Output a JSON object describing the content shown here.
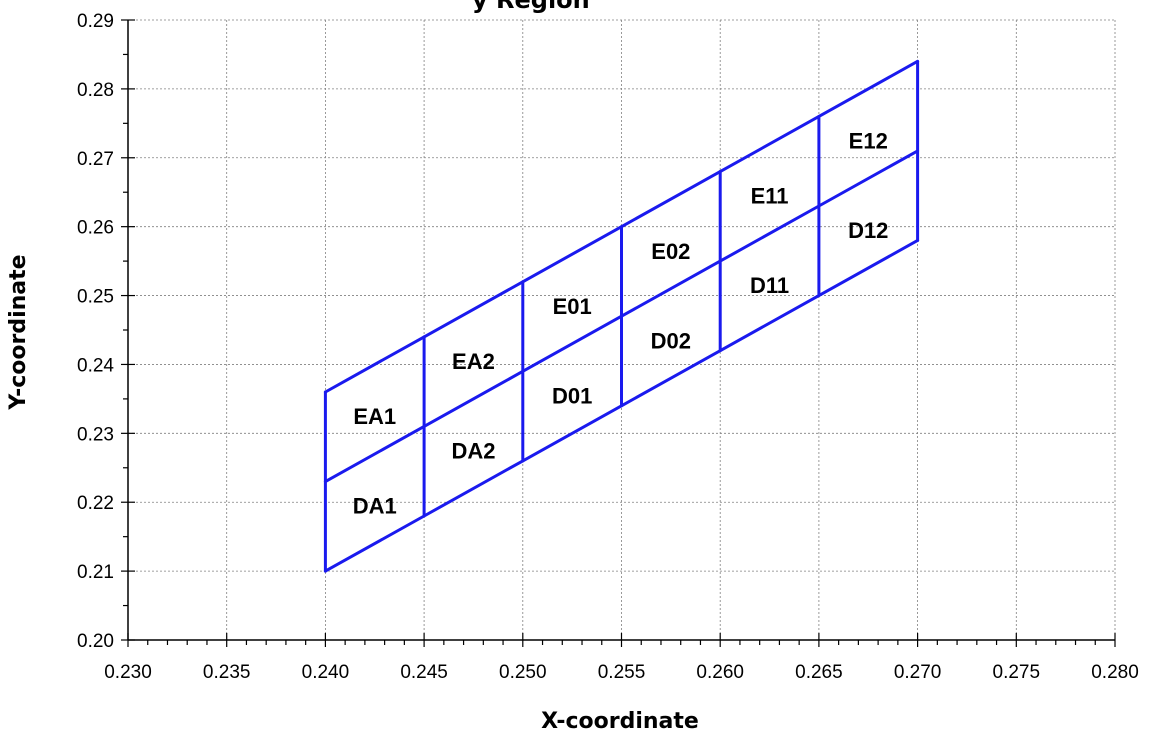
{
  "chart_data": {
    "type": "line",
    "title_visible_fragment": "y Region",
    "xlabel": "X-coordinate",
    "ylabel": "Y-coordinate",
    "xlim": [
      0.23,
      0.28
    ],
    "ylim": [
      0.2,
      0.29
    ],
    "x_ticks": [
      "0.230",
      "0.235",
      "0.240",
      "0.245",
      "0.250",
      "0.255",
      "0.260",
      "0.265",
      "0.270",
      "0.275",
      "0.280"
    ],
    "y_ticks": [
      "0.20",
      "0.21",
      "0.22",
      "0.23",
      "0.24",
      "0.25",
      "0.26",
      "0.27",
      "0.28",
      "0.29"
    ],
    "grid": true,
    "line_color": "#1a1aee",
    "x": [
      0.24,
      0.245,
      0.25,
      0.255,
      0.26,
      0.265,
      0.27
    ],
    "series": [
      {
        "values": [
          0.21,
          0.218,
          0.226,
          0.234,
          0.242,
          0.25,
          0.258
        ]
      },
      {
        "values": [
          0.223,
          0.231,
          0.239,
          0.247,
          0.255,
          0.263,
          0.271
        ]
      },
      {
        "values": [
          0.236,
          0.244,
          0.252,
          0.26,
          0.268,
          0.276,
          0.284
        ]
      }
    ],
    "cells": [
      {
        "label": "DA1",
        "x": 0.2425,
        "y": 0.2195
      },
      {
        "label": "EA1",
        "x": 0.2425,
        "y": 0.2325
      },
      {
        "label": "DA2",
        "x": 0.2475,
        "y": 0.2275
      },
      {
        "label": "EA2",
        "x": 0.2475,
        "y": 0.2405
      },
      {
        "label": "D01",
        "x": 0.2525,
        "y": 0.2355
      },
      {
        "label": "E01",
        "x": 0.2525,
        "y": 0.2485
      },
      {
        "label": "D02",
        "x": 0.2575,
        "y": 0.2435
      },
      {
        "label": "E02",
        "x": 0.2575,
        "y": 0.2565
      },
      {
        "label": "D11",
        "x": 0.2625,
        "y": 0.2515
      },
      {
        "label": "E11",
        "x": 0.2625,
        "y": 0.2645
      },
      {
        "label": "D12",
        "x": 0.2675,
        "y": 0.2595
      },
      {
        "label": "E12",
        "x": 0.2675,
        "y": 0.2725
      }
    ]
  }
}
